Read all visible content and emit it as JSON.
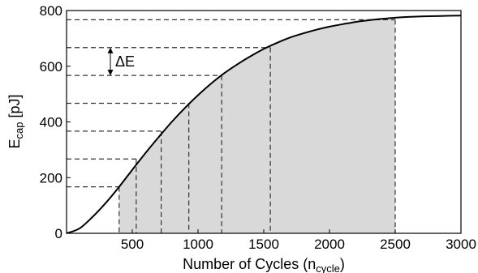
{
  "chart_data": {
    "type": "line",
    "title": "",
    "xlabel": {
      "main": "Number of Cycles (n",
      "sub": "cycle",
      "tail": ")"
    },
    "ylabel": {
      "main": "E",
      "sub": "cap",
      "tail": " [pJ]"
    },
    "xlim": [
      0,
      3000
    ],
    "ylim": [
      0,
      800
    ],
    "grid": false,
    "legend": "none",
    "xticks": [
      500,
      1000,
      1500,
      2000,
      2500,
      3000
    ],
    "yticks": [
      0,
      200,
      400,
      600,
      800
    ],
    "series": [
      {
        "x": [
          0,
          100,
          200,
          300,
          400,
          500,
          600,
          700,
          800,
          900,
          1000,
          1100,
          1200,
          1300,
          1400,
          1500,
          1600,
          1700,
          1800,
          1900,
          2000,
          2100,
          2200,
          2300,
          2400,
          2500,
          2600,
          2700,
          2800,
          2900,
          3000
        ],
        "y": [
          0,
          18,
          60,
          110,
          167,
          228,
          288,
          345,
          400,
          450,
          496,
          538,
          575,
          607,
          636,
          662,
          684,
          703,
          718,
          731,
          742,
          751,
          759,
          765,
          770,
          774,
          777,
          779,
          780,
          781,
          782
        ]
      }
    ],
    "shaded_region": {
      "x_from": 400,
      "x_to": 2500
    },
    "levels": [
      {
        "x": 400,
        "y": 167
      },
      {
        "x": 530,
        "y": 267
      },
      {
        "x": 720,
        "y": 367
      },
      {
        "x": 930,
        "y": 467
      },
      {
        "x": 1180,
        "y": 567
      },
      {
        "x": 1550,
        "y": 667
      },
      {
        "x": 2500,
        "y": 767
      }
    ],
    "annotation": {
      "text": "ΔE",
      "from_y": 567,
      "to_y": 667
    }
  }
}
